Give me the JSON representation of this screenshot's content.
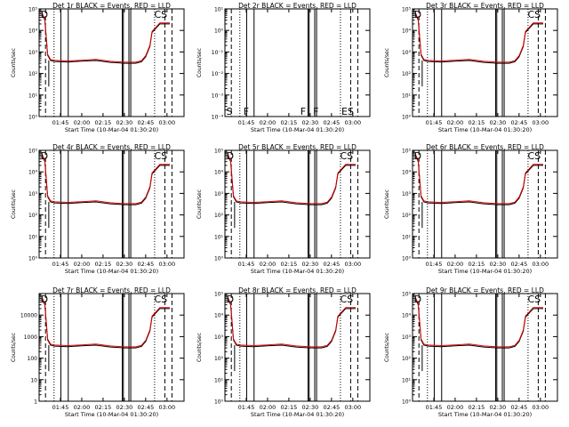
{
  "chart_data": {
    "type": "line",
    "layout": "3x3 grid",
    "x_axis": {
      "xlabel": "Start Time (10-Mar-04 01:30:20)",
      "tick_labels": [
        "01:45",
        "02:00",
        "02:15",
        "02:30",
        "02:45",
        "03:00"
      ],
      "tick_minutes": [
        105,
        120,
        135,
        150,
        165,
        180
      ],
      "xlim_minutes": [
        90,
        192
      ]
    },
    "y_axis": {
      "ylabel": "Counts/sec",
      "scale": "log",
      "ylim": [
        1,
        100000
      ],
      "tick_labels_exp": [
        "10⁰",
        "10¹",
        "10²",
        "10³",
        "10⁴",
        "10⁵"
      ],
      "tick_labels_plain": [
        "1",
        "10",
        "100",
        "1000",
        "10000"
      ]
    },
    "series_legend": "BLACK = Events, RED = LLD",
    "profile": {
      "minutes": [
        92,
        94,
        96,
        98,
        101,
        110,
        120,
        130,
        140,
        150,
        158,
        162,
        165,
        168,
        169.5,
        175,
        181,
        182
      ],
      "counts": [
        60000,
        30000,
        700,
        400,
        360,
        340,
        370,
        400,
        330,
        300,
        300,
        350,
        600,
        1800,
        8000,
        20000,
        20000,
        20000
      ]
    },
    "panels": [
      {
        "title": "Det 1r  BLACK = Events, RED = LLD",
        "y_tick_style": "exp",
        "has_data": true,
        "solid_lines": [
          105.3,
          110.5,
          148.5,
          149.3,
          153.2,
          154.5
        ],
        "dotted_lines": [
          100.5,
          171.3
        ],
        "dashed_lines": [
          94.5,
          178.5,
          183.5
        ],
        "markers": [
          {
            "label": "D",
            "minute": 91
          },
          {
            "label": "CS",
            "minute": 171
          }
        ]
      },
      {
        "title": "Det 2r  BLACK = Events, RED = LLD",
        "y_tick_style": "exp",
        "y_ticks_override": [
          "10⁻⁴",
          "10⁻³",
          "10⁻²",
          "10⁻¹",
          "10⁰",
          "10¹"
        ],
        "has_data": false,
        "solid_lines": [
          105.3,
          110.5,
          148.5,
          149.3,
          153.2,
          154.5
        ],
        "dotted_lines": [
          100.5,
          171.3
        ],
        "dashed_lines": [
          94.5,
          178.5,
          183.5
        ],
        "markers": [
          {
            "label": "S",
            "minute": 91
          },
          {
            "label": "F",
            "minute": 103
          },
          {
            "label": "F",
            "minute": 143
          },
          {
            "label": "F",
            "minute": 152
          },
          {
            "label": "ES",
            "minute": 172
          }
        ]
      },
      {
        "title": "Det 3r  BLACK = Events, RED = LLD",
        "y_tick_style": "exp",
        "has_data": true,
        "solid_lines": [
          105.3,
          110.5,
          148.5,
          149.3,
          153.2,
          154.5
        ],
        "dotted_lines": [
          100.5,
          171.3
        ],
        "dashed_lines": [
          94.5,
          178.5,
          183.5
        ],
        "markers": [
          {
            "label": "D",
            "minute": 91
          },
          {
            "label": "CS",
            "minute": 171
          }
        ]
      },
      {
        "title": "Det 4r  BLACK = Events, RED = LLD",
        "y_tick_style": "exp",
        "has_data": true,
        "solid_lines": [
          105.3,
          110.5,
          148.5,
          149.3,
          153.2,
          154.5
        ],
        "dotted_lines": [
          100.5,
          171.3
        ],
        "dashed_lines": [
          94.5,
          178.5,
          183.5
        ],
        "markers": [
          {
            "label": "D",
            "minute": 91
          },
          {
            "label": "CS",
            "minute": 171
          }
        ]
      },
      {
        "title": "Det 5r  BLACK = Events, RED = LLD",
        "y_tick_style": "exp",
        "has_data": true,
        "solid_lines": [
          105.3,
          110.5,
          148.5,
          149.3,
          153.2,
          154.5
        ],
        "dotted_lines": [
          100.5,
          171.3
        ],
        "dashed_lines": [
          94.5,
          178.5,
          183.5
        ],
        "markers": [
          {
            "label": "D",
            "minute": 91
          },
          {
            "label": "CS",
            "minute": 171
          }
        ]
      },
      {
        "title": "Det 6r  BLACK = Events, RED = LLD",
        "y_tick_style": "exp",
        "has_data": true,
        "solid_lines": [
          105.3,
          110.5,
          148.5,
          149.3,
          153.2,
          154.5
        ],
        "dotted_lines": [
          100.5,
          171.3
        ],
        "dashed_lines": [
          94.5,
          178.5,
          183.5
        ],
        "markers": [
          {
            "label": "D",
            "minute": 91
          },
          {
            "label": "CS",
            "minute": 171
          }
        ]
      },
      {
        "title": "Det 7r  BLACK = Events, RED = LLD",
        "y_tick_style": "plain",
        "has_data": true,
        "solid_lines": [
          105.3,
          110.5,
          148.5,
          149.3,
          153.2,
          154.5
        ],
        "dotted_lines": [
          100.5,
          171.3
        ],
        "dashed_lines": [
          94.5,
          178.5,
          183.5
        ],
        "markers": [
          {
            "label": "D",
            "minute": 91
          },
          {
            "label": "CS",
            "minute": 171
          }
        ]
      },
      {
        "title": "Det 8r  BLACK = Events, RED = LLD",
        "y_tick_style": "exp",
        "has_data": true,
        "solid_lines": [
          105.3,
          110.5,
          148.5,
          149.3,
          153.2,
          154.5
        ],
        "dotted_lines": [
          100.5,
          171.3
        ],
        "dashed_lines": [
          94.5,
          178.5,
          183.5
        ],
        "markers": [
          {
            "label": "D",
            "minute": 91
          },
          {
            "label": "CS",
            "minute": 171
          }
        ]
      },
      {
        "title": "Det 9r  BLACK = Events, RED = LLD",
        "y_tick_style": "exp",
        "has_data": true,
        "solid_lines": [
          105.3,
          110.5,
          148.5,
          149.3,
          153.2,
          154.5
        ],
        "dotted_lines": [
          100.5,
          171.3
        ],
        "dashed_lines": [
          94.5,
          178.5,
          183.5
        ],
        "markers": [
          {
            "label": "D",
            "minute": 91
          },
          {
            "label": "CS",
            "minute": 171
          }
        ]
      }
    ]
  }
}
